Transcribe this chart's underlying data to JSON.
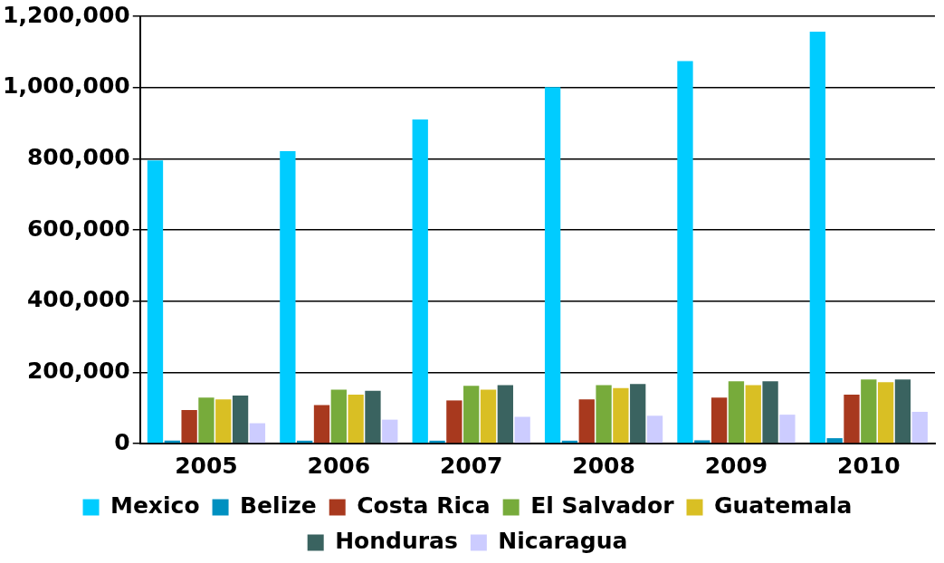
{
  "chart_data": {
    "type": "bar",
    "categories": [
      "2005",
      "2006",
      "2007",
      "2008",
      "2009",
      "2010"
    ],
    "series": [
      {
        "name": "Mexico",
        "color": "#00ccff",
        "values": [
          795000,
          821000,
          910000,
          1001000,
          1074000,
          1157000
        ]
      },
      {
        "name": "Belize",
        "color": "#0090c0",
        "values": [
          8000,
          8000,
          8000,
          8000,
          9000,
          15000
        ]
      },
      {
        "name": "Costa Rica",
        "color": "#a8391e",
        "values": [
          94000,
          108000,
          121000,
          124000,
          129000,
          137000
        ]
      },
      {
        "name": "El Salvador",
        "color": "#77ab3b",
        "values": [
          129000,
          151000,
          162000,
          164000,
          175000,
          180000
        ]
      },
      {
        "name": "Guatemala",
        "color": "#d9bf24",
        "values": [
          124000,
          137000,
          151000,
          156000,
          164000,
          172000
        ]
      },
      {
        "name": "Honduras",
        "color": "#3a6360",
        "values": [
          135000,
          148000,
          164000,
          167000,
          175000,
          180000
        ]
      },
      {
        "name": "Nicaragua",
        "color": "#ccccff",
        "values": [
          57000,
          67000,
          75000,
          78000,
          81000,
          89000
        ]
      }
    ],
    "ylim": [
      0,
      1200000
    ],
    "yticks": [
      {
        "value": 0,
        "label": "0"
      },
      {
        "value": 200000,
        "label": "200,000"
      },
      {
        "value": 400000,
        "label": "400,000"
      },
      {
        "value": 600000,
        "label": "600,000"
      },
      {
        "value": 800000,
        "label": "800,000"
      },
      {
        "value": 1000000,
        "label": "1,000,000"
      },
      {
        "value": 1200000,
        "label": "1,200,000"
      }
    ],
    "grid": "y",
    "legend": "bottom"
  }
}
